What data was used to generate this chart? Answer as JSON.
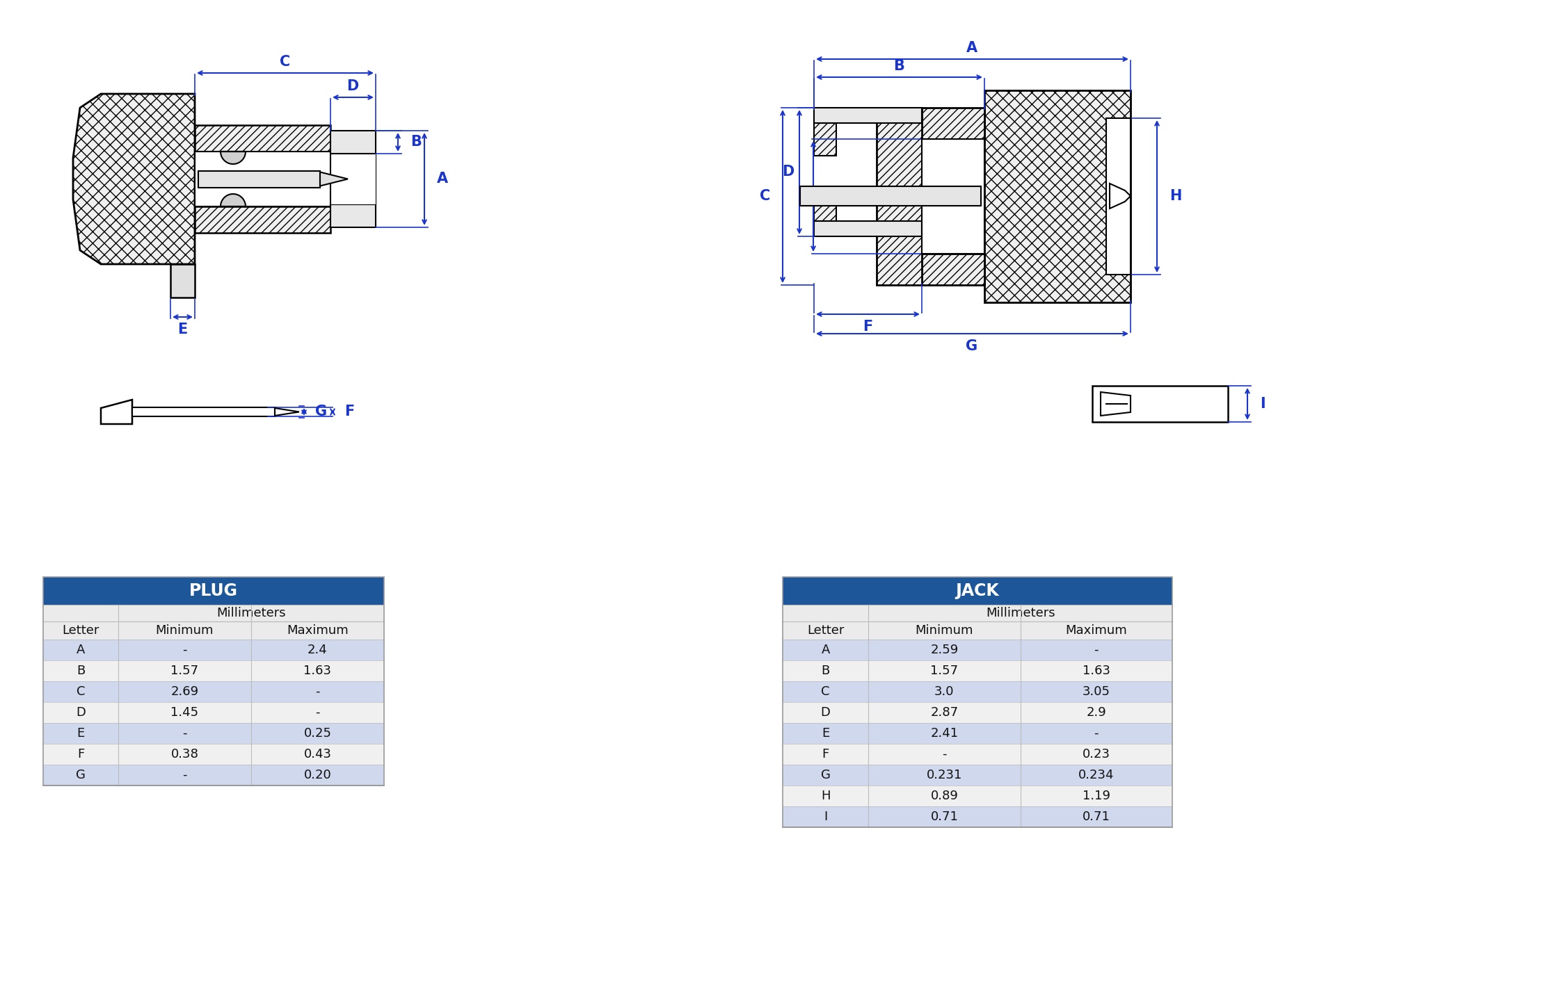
{
  "plug_table": {
    "title": "PLUG",
    "header_color": "#1e5799",
    "header_text_color": "#ffffff",
    "subheader": "Millimeters",
    "col1": "Letter",
    "col2": "Minimum",
    "col3": "Maximum",
    "rows": [
      [
        "A",
        "-",
        "2.4"
      ],
      [
        "B",
        "1.57",
        "1.63"
      ],
      [
        "C",
        "2.69",
        "-"
      ],
      [
        "D",
        "1.45",
        "-"
      ],
      [
        "E",
        "-",
        "0.25"
      ],
      [
        "F",
        "0.38",
        "0.43"
      ],
      [
        "G",
        "-",
        "0.20"
      ]
    ],
    "odd_row_color": "#d0d8ee",
    "even_row_color": "#f0f0f0",
    "text_color": "#111111"
  },
  "jack_table": {
    "title": "JACK",
    "header_color": "#1e5799",
    "header_text_color": "#ffffff",
    "subheader": "Millimeters",
    "col1": "Letter",
    "col2": "Minimum",
    "col3": "Maximum",
    "rows": [
      [
        "A",
        "2.59",
        "-"
      ],
      [
        "B",
        "1.57",
        "1.63"
      ],
      [
        "C",
        "3.0",
        "3.05"
      ],
      [
        "D",
        "2.87",
        "2.9"
      ],
      [
        "E",
        "2.41",
        "-"
      ],
      [
        "F",
        "-",
        "0.23"
      ],
      [
        "G",
        "0.231",
        "0.234"
      ],
      [
        "H",
        "0.89",
        "1.19"
      ],
      [
        "I",
        "0.71",
        "0.71"
      ]
    ],
    "odd_row_color": "#d0d8ee",
    "even_row_color": "#f0f0f0",
    "text_color": "#111111"
  },
  "bg": "#ffffff",
  "dc": "#1a35cc",
  "lc": "#000000"
}
